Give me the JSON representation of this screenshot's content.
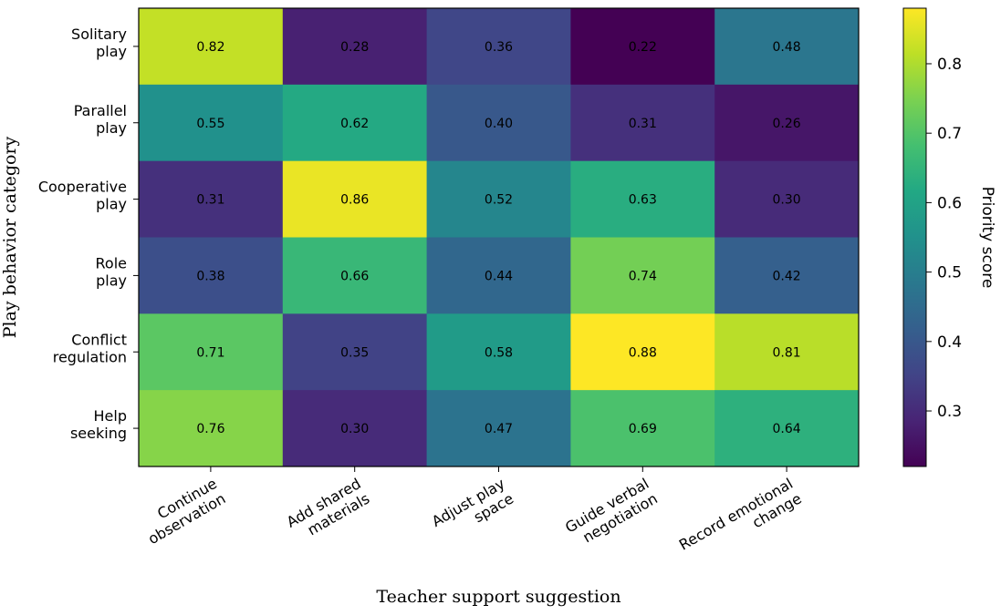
{
  "chart_data": {
    "type": "heatmap",
    "xlabel": "Teacher support suggestion",
    "ylabel": "Play behavior category",
    "x_categories": [
      [
        "Continue",
        "observation"
      ],
      [
        "Add shared",
        "materials"
      ],
      [
        "Adjust play",
        "space"
      ],
      [
        "Guide verbal",
        "negotiation"
      ],
      [
        "Record emotional",
        "change"
      ]
    ],
    "y_categories": [
      [
        "Solitary",
        "play"
      ],
      [
        "Parallel",
        "play"
      ],
      [
        "Cooperative",
        "play"
      ],
      [
        "Role",
        "play"
      ],
      [
        "Conflict",
        "regulation"
      ],
      [
        "Help",
        "seeking"
      ]
    ],
    "values": [
      [
        0.82,
        0.28,
        0.36,
        0.22,
        0.48
      ],
      [
        0.55,
        0.62,
        0.4,
        0.31,
        0.26
      ],
      [
        0.31,
        0.86,
        0.52,
        0.63,
        0.3
      ],
      [
        0.38,
        0.66,
        0.44,
        0.74,
        0.42
      ],
      [
        0.71,
        0.35,
        0.58,
        0.88,
        0.81
      ],
      [
        0.76,
        0.3,
        0.47,
        0.69,
        0.64
      ]
    ],
    "value_format": "0.00",
    "colorbar": {
      "label": "Priority score",
      "min": 0.22,
      "max": 0.88,
      "ticks": [
        "0.3",
        "0.4",
        "0.5",
        "0.6",
        "0.7",
        "0.8"
      ],
      "colormap": "viridis"
    }
  }
}
